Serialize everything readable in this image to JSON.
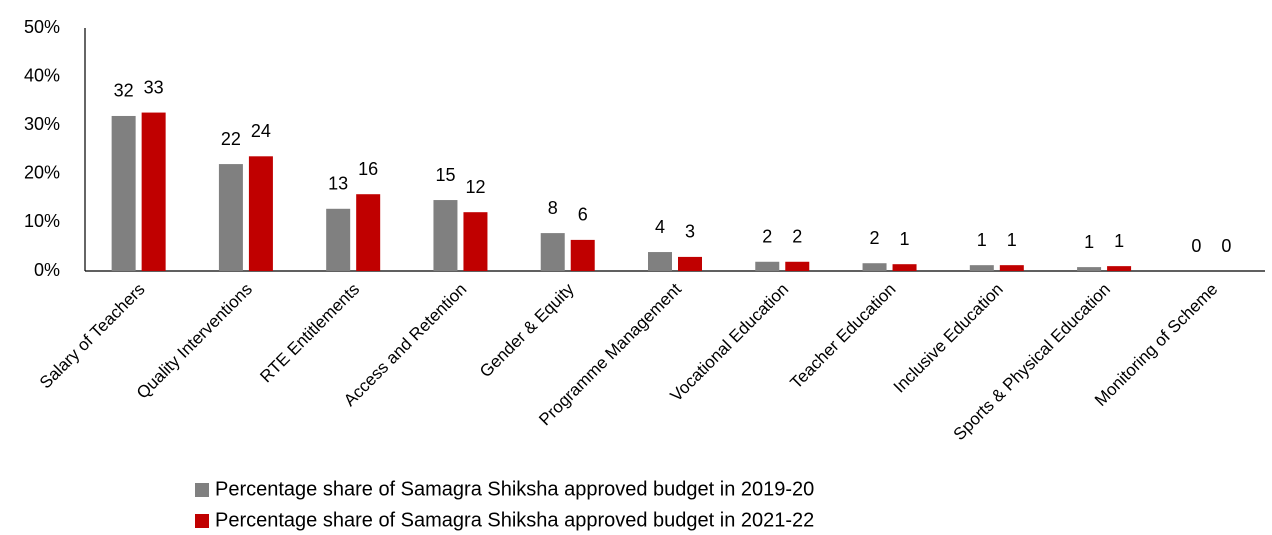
{
  "chart_data": {
    "type": "bar",
    "categories": [
      "Salary of Teachers",
      "Quality Interventions",
      "RTE Entitlements",
      "Access and Retention",
      "Gender & Equity",
      "Programme Management",
      "Vocational Education",
      "Teacher Education",
      "Inclusive Education",
      "Sports & Physical Education",
      "Monitoring of Scheme"
    ],
    "series": [
      {
        "name": "Percentage share of Samagra Shiksha approved budget in 2019-20",
        "color": "#808080",
        "values": [
          31.9,
          22.0,
          12.8,
          14.6,
          7.8,
          3.9,
          1.9,
          1.6,
          1.2,
          0.8,
          0
        ],
        "value_labels": [
          "32",
          "22",
          "13",
          "15",
          "8",
          "4",
          "2",
          "2",
          "1",
          "1",
          "0"
        ]
      },
      {
        "name": "Percentage share of Samagra Shiksha approved budget in 2021-22",
        "color": "#c00000",
        "values": [
          32.6,
          23.6,
          15.8,
          12.1,
          6.4,
          2.9,
          1.9,
          1.4,
          1.2,
          1.0,
          0
        ],
        "value_labels": [
          "33",
          "24",
          "16",
          "12",
          "6",
          "3",
          "2",
          "1",
          "1",
          "1",
          "0"
        ]
      }
    ],
    "ylim": [
      0,
      50
    ],
    "yticks": [
      {
        "value": 0,
        "label": "0%"
      },
      {
        "value": 10,
        "label": "10%"
      },
      {
        "value": 20,
        "label": "20%"
      },
      {
        "value": 30,
        "label": "30%"
      },
      {
        "value": 40,
        "label": "40%"
      },
      {
        "value": 50,
        "label": "50%"
      }
    ],
    "grid": false
  }
}
